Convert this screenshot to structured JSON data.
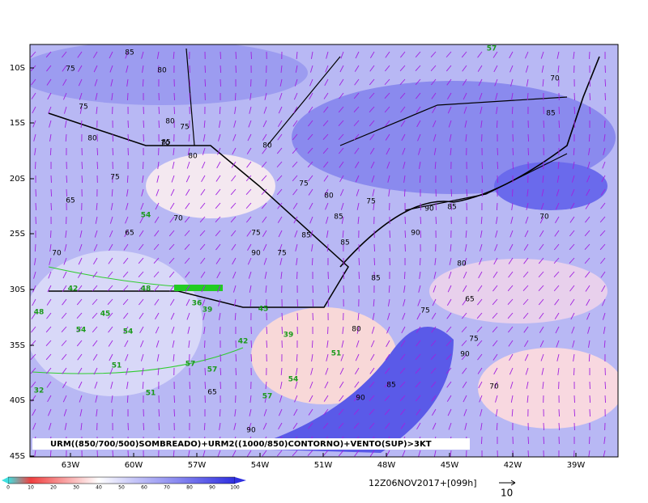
{
  "lat_labels": [
    "10S",
    "15S",
    "20S",
    "25S",
    "30S",
    "35S",
    "40S",
    "45S"
  ],
  "lon_labels": [
    "63W",
    "60W",
    "57W",
    "54W",
    "51W",
    "48W",
    "45W",
    "42W",
    "39W"
  ],
  "caption": "URM((850/700/500)SOMBREADO)+URM2((1000/850)CONTORNO)+VENTO(SUP)>3KT",
  "colorbar_labels": [
    0,
    10,
    20,
    30,
    40,
    50,
    60,
    70,
    80,
    90,
    100
  ],
  "timestamp": "12Z06NOV2017+[099h]",
  "vector_scale": "10",
  "contour_labels": [
    "75",
    "80",
    "75",
    "80",
    "75",
    "80",
    "85",
    "75",
    "85",
    "80",
    "70",
    "65",
    "80",
    "75",
    "70",
    "80",
    "85",
    "75",
    "90",
    "85",
    "90",
    "85",
    "90",
    "75",
    "65",
    "75",
    "70",
    "85",
    "80",
    "75",
    "85",
    "90",
    "70",
    "65",
    "75",
    "80",
    "65",
    "70",
    "90",
    "85",
    "90",
    "85",
    "70"
  ],
  "humidity2_labels": [
    "57",
    "54",
    "51",
    "42",
    "45",
    "48",
    "36",
    "39",
    "42",
    "45",
    "57",
    "54",
    "51",
    "48",
    "51",
    "57",
    "54",
    "39",
    "54",
    "57",
    "32"
  ]
}
